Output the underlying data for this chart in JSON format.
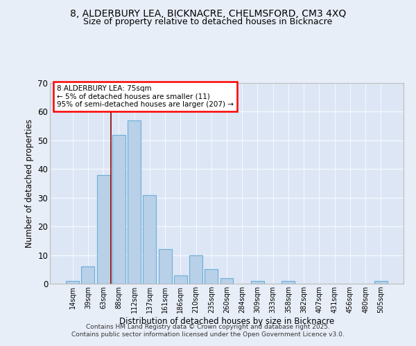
{
  "title_line1": "8, ALDERBURY LEA, BICKNACRE, CHELMSFORD, CM3 4XQ",
  "title_line2": "Size of property relative to detached houses in Bicknacre",
  "xlabel": "Distribution of detached houses by size in Bicknacre",
  "ylabel": "Number of detached properties",
  "categories": [
    "14sqm",
    "39sqm",
    "63sqm",
    "88sqm",
    "112sqm",
    "137sqm",
    "161sqm",
    "186sqm",
    "210sqm",
    "235sqm",
    "260sqm",
    "284sqm",
    "309sqm",
    "333sqm",
    "358sqm",
    "382sqm",
    "407sqm",
    "431sqm",
    "456sqm",
    "480sqm",
    "505sqm"
  ],
  "values": [
    1,
    6,
    38,
    52,
    57,
    31,
    12,
    3,
    10,
    5,
    2,
    0,
    1,
    0,
    1,
    0,
    0,
    0,
    0,
    0,
    1
  ],
  "bar_color": "#b8d0e8",
  "bar_edge_color": "#6baed6",
  "ylim": [
    0,
    70
  ],
  "yticks": [
    0,
    10,
    20,
    30,
    40,
    50,
    60,
    70
  ],
  "redline_x": 2.5,
  "annotation_title": "8 ALDERBURY LEA: 75sqm",
  "annotation_line2": "← 5% of detached houses are smaller (11)",
  "annotation_line3": "95% of semi-detached houses are larger (207) →",
  "footer_line1": "Contains HM Land Registry data © Crown copyright and database right 2025.",
  "footer_line2": "Contains public sector information licensed under the Open Government Licence v3.0.",
  "bg_color": "#e8eef8",
  "plot_bg_color": "#dce6f5",
  "grid_color": "#f5f8ff",
  "title_fontsize": 10,
  "subtitle_fontsize": 9,
  "axis_fontsize": 8.5
}
